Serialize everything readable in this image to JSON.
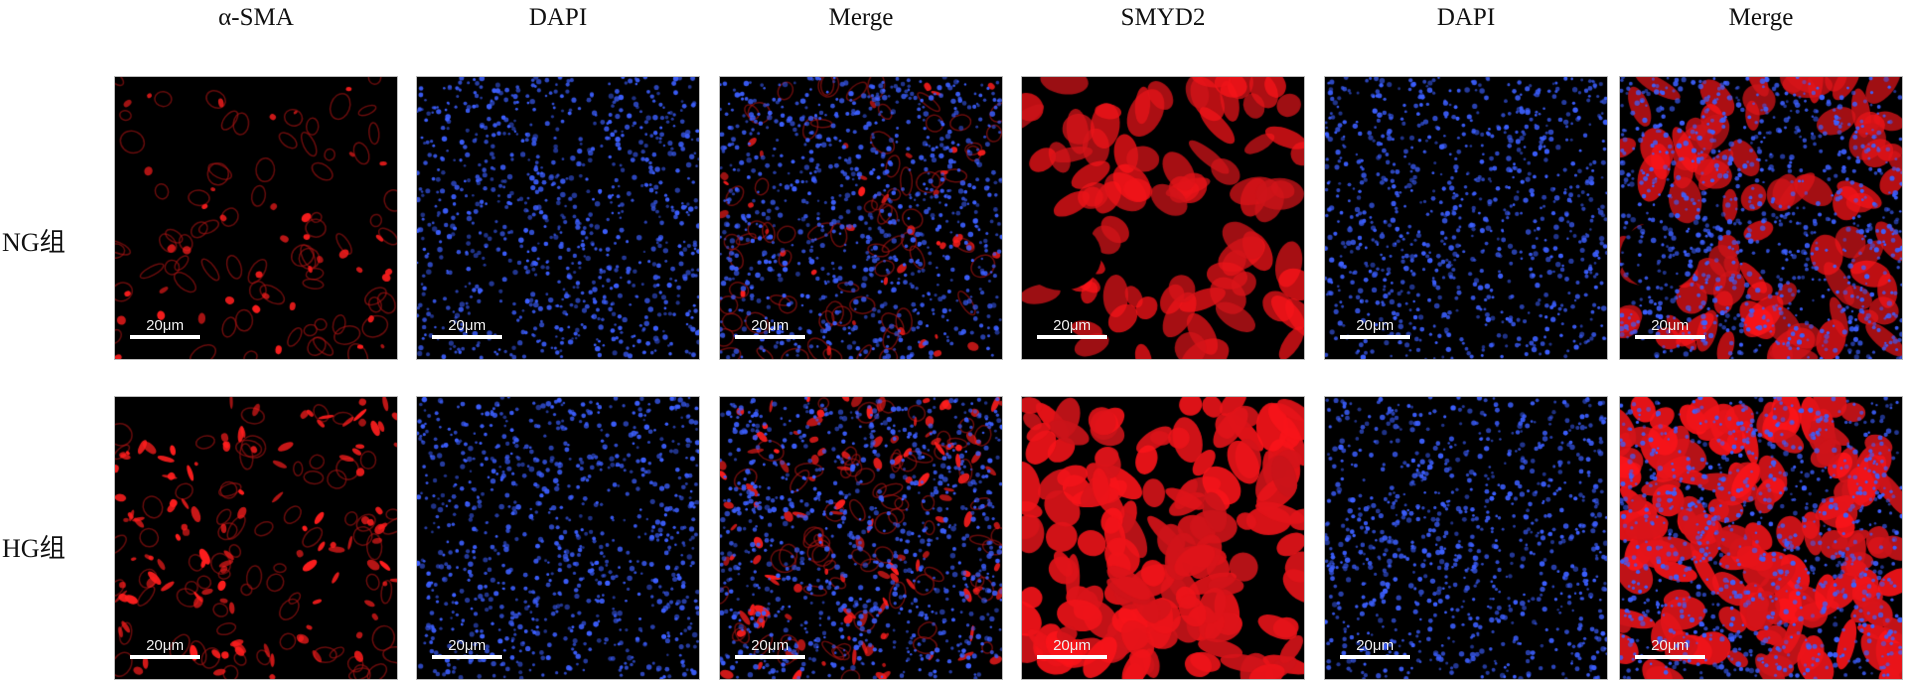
{
  "figure": {
    "column_labels": [
      "α-SMA",
      "DAPI",
      "Merge",
      "SMYD2",
      "DAPI",
      "Merge"
    ],
    "row_labels": [
      "NG组",
      "HG组"
    ],
    "scale_bar_label": "20μm",
    "channel_colors": {
      "red": "#ff2020",
      "blue": "#3a5cff",
      "background": "#000000"
    }
  }
}
